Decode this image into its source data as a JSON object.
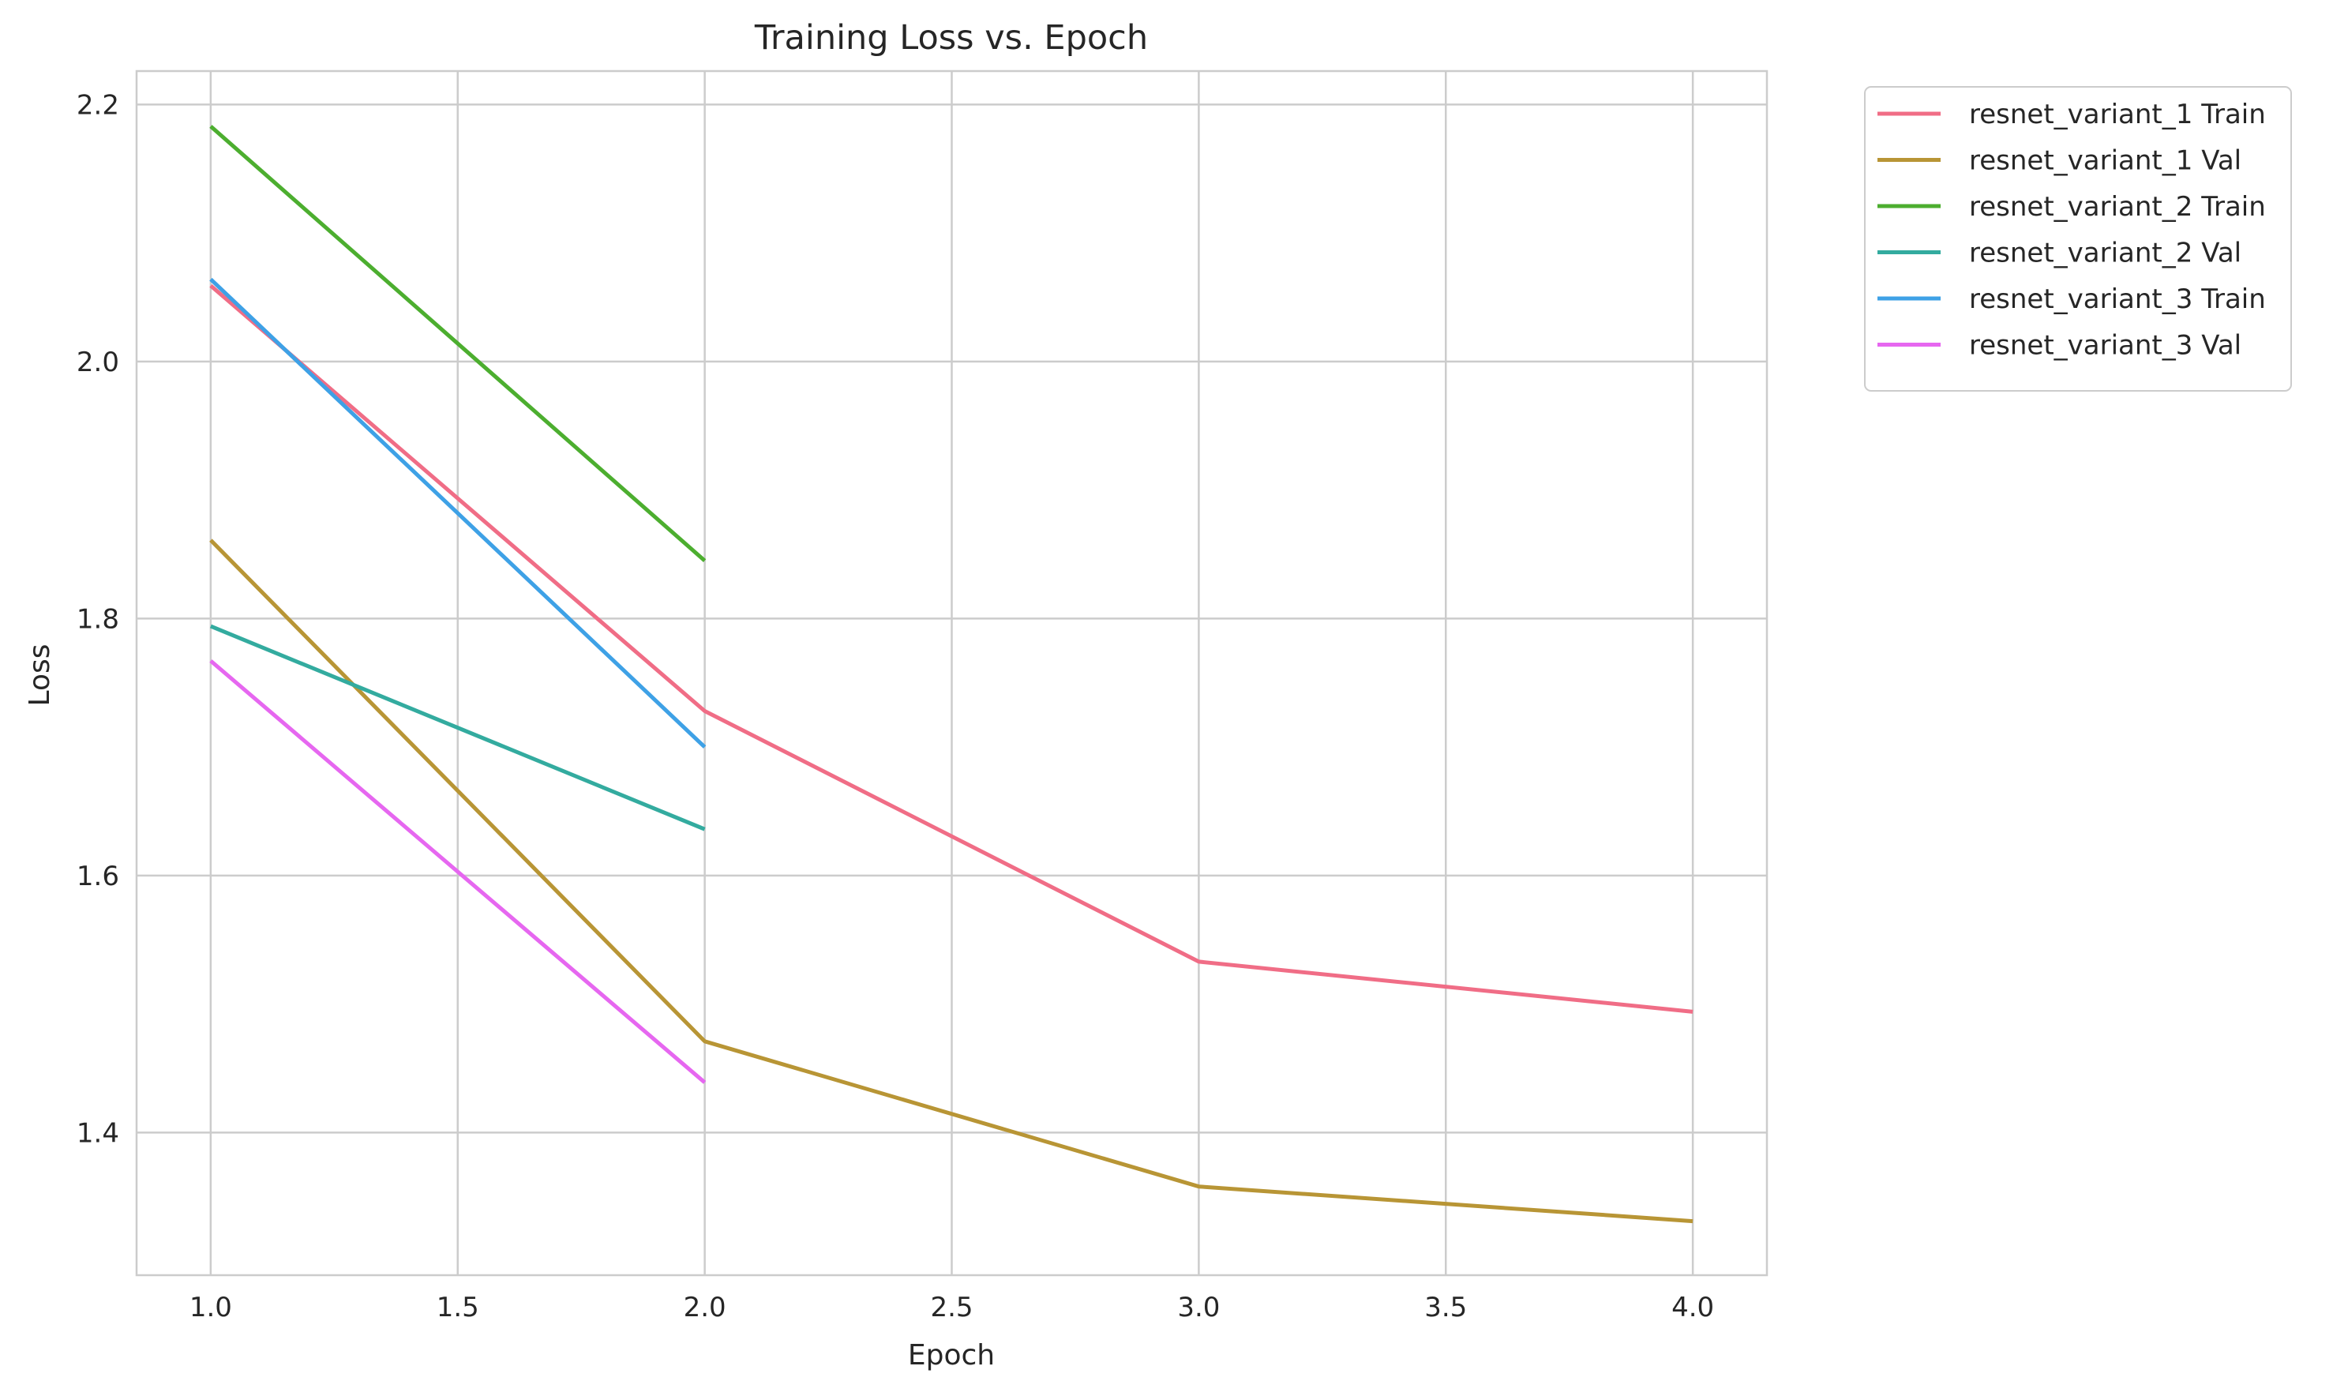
{
  "chart_data": {
    "type": "line",
    "title": "Training Loss vs. Epoch",
    "xlabel": "Epoch",
    "ylabel": "Loss",
    "xlim": [
      0.85,
      4.15
    ],
    "ylim": [
      1.289,
      2.226
    ],
    "xticks": [
      1.0,
      1.5,
      2.0,
      2.5,
      3.0,
      3.5,
      4.0
    ],
    "xtick_labels": [
      "1.0",
      "1.5",
      "2.0",
      "2.5",
      "3.0",
      "3.5",
      "4.0"
    ],
    "yticks": [
      1.4,
      1.6,
      1.8,
      2.0,
      2.2
    ],
    "ytick_labels": [
      "1.4",
      "1.6",
      "1.8",
      "2.0",
      "2.2"
    ],
    "grid": true,
    "legend_position": "outside-top-right",
    "series": [
      {
        "name": "resnet_variant_1 Train",
        "color": "#f06d86",
        "x": [
          1,
          2,
          3,
          4
        ],
        "y": [
          2.059,
          1.728,
          1.533,
          1.494
        ]
      },
      {
        "name": "resnet_variant_1 Val",
        "color": "#b89535",
        "x": [
          1,
          2,
          3,
          4
        ],
        "y": [
          1.861,
          1.471,
          1.358,
          1.331
        ]
      },
      {
        "name": "resnet_variant_2 Train",
        "color": "#4cae2f",
        "x": [
          1,
          2
        ],
        "y": [
          2.183,
          1.845
        ]
      },
      {
        "name": "resnet_variant_2 Val",
        "color": "#33ab9f",
        "x": [
          1,
          2
        ],
        "y": [
          1.794,
          1.636
        ]
      },
      {
        "name": "resnet_variant_3 Train",
        "color": "#3ea1e6",
        "x": [
          1,
          2
        ],
        "y": [
          2.064,
          1.7
        ]
      },
      {
        "name": "resnet_variant_3 Val",
        "color": "#e667f0",
        "x": [
          1,
          2
        ],
        "y": [
          1.767,
          1.439
        ]
      }
    ]
  }
}
